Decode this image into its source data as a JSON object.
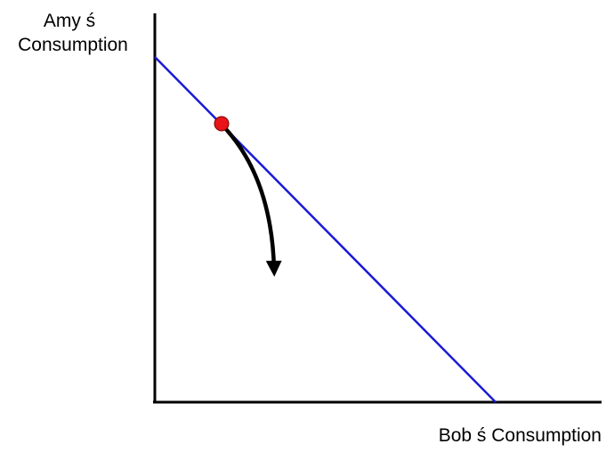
{
  "y_axis_label": [
    "Amy ś",
    "Consumption"
  ],
  "x_axis_label": "Bob ś Consumption"
}
